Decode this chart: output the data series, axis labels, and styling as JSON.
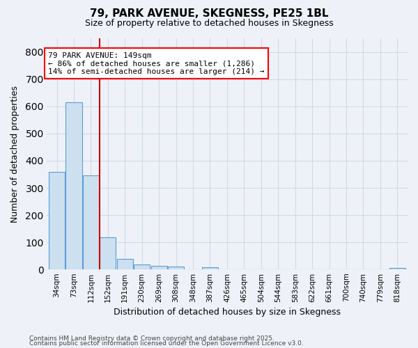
{
  "title": "79, PARK AVENUE, SKEGNESS, PE25 1BL",
  "subtitle": "Size of property relative to detached houses in Skegness",
  "xlabel": "Distribution of detached houses by size in Skegness",
  "ylabel": "Number of detached properties",
  "categories": [
    "34sqm",
    "73sqm",
    "112sqm",
    "152sqm",
    "191sqm",
    "230sqm",
    "269sqm",
    "308sqm",
    "348sqm",
    "387sqm",
    "426sqm",
    "465sqm",
    "504sqm",
    "544sqm",
    "583sqm",
    "622sqm",
    "661sqm",
    "700sqm",
    "740sqm",
    "779sqm",
    "818sqm"
  ],
  "values": [
    360,
    615,
    345,
    118,
    40,
    18,
    15,
    10,
    0,
    8,
    0,
    0,
    0,
    0,
    0,
    0,
    0,
    0,
    0,
    0,
    6
  ],
  "bar_color": "#cce0f0",
  "bar_edge_color": "#5b9bd5",
  "red_line_x": 2.5,
  "ann_line1": "79 PARK AVENUE: 149sqm",
  "ann_line2": "← 86% of detached houses are smaller (1,286)",
  "ann_line3": "14% of semi-detached houses are larger (214) →",
  "annotation_box_color": "white",
  "annotation_box_edge_color": "red",
  "red_line_color": "#cc0000",
  "ylim": [
    0,
    850
  ],
  "yticks": [
    0,
    100,
    200,
    300,
    400,
    500,
    600,
    700,
    800
  ],
  "background_color": "#eef2f8",
  "grid_color": "#d0d8e8",
  "footer1": "Contains HM Land Registry data © Crown copyright and database right 2025.",
  "footer2": "Contains public sector information licensed under the Open Government Licence v3.0."
}
